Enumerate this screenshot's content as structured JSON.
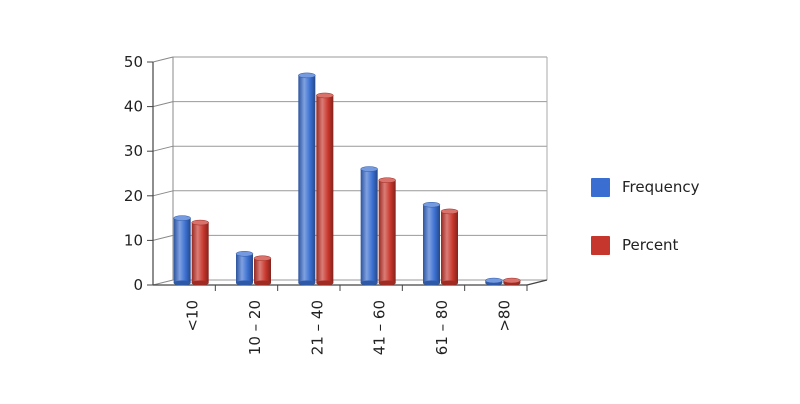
{
  "chart_data": {
    "type": "bar",
    "categories": [
      "<10",
      "10 – 20",
      "21 – 40",
      "41 – 60",
      "61 – 80",
      ">80"
    ],
    "series": [
      {
        "name": "Frequency",
        "color": "#3a6fd1",
        "values": [
          15,
          7,
          47,
          26,
          18,
          1
        ]
      },
      {
        "name": "Percent",
        "color": "#c7362c",
        "values": [
          14,
          6,
          42.5,
          23.5,
          16.5,
          1
        ]
      }
    ],
    "ylim": [
      0,
      50
    ],
    "yticks": [
      0,
      10,
      20,
      30,
      40,
      50
    ],
    "grid": true,
    "legend": "right",
    "xlabel": "",
    "ylabel": ""
  }
}
